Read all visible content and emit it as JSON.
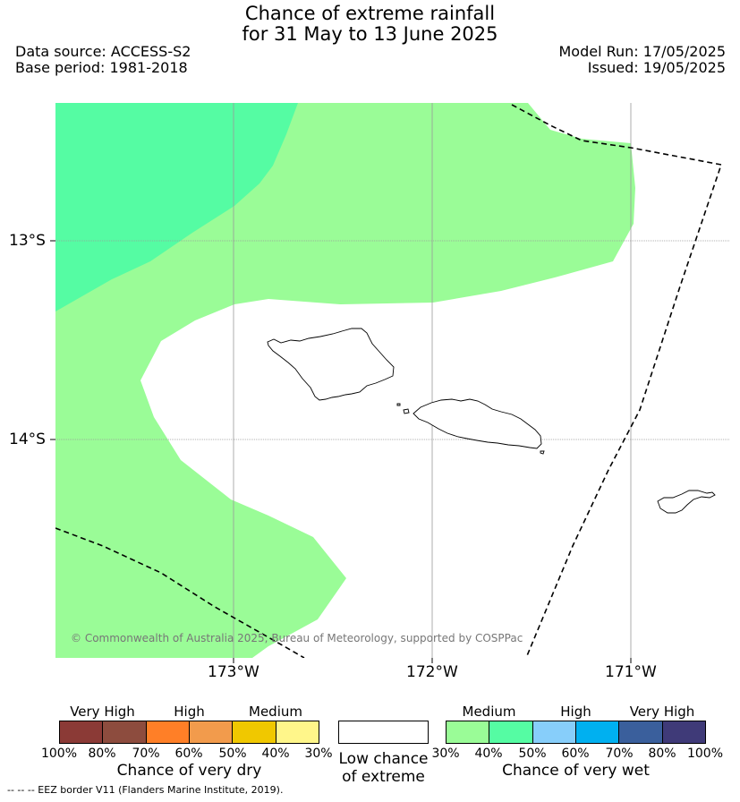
{
  "header": {
    "title_line1": "Chance of extreme rainfall",
    "title_line2": "for 31 May to 13 June 2025",
    "data_source": "Data source: ACCESS-S2",
    "base_period": "Base period: 1981-2018",
    "model_run": "Model Run: 17/05/2025",
    "issued": "Issued: 19/05/2025"
  },
  "map": {
    "lat_labels": [
      "13°S",
      "14°S"
    ],
    "lon_labels": [
      "173°W",
      "172°W",
      "171°W"
    ],
    "copyright": "© Commonwealth of Australia 2025, Bureau of Meteorology, supported by COSPPac",
    "colors": {
      "wet_medium": "#9afc97",
      "wet_40_50": "#55fca3",
      "land_outline": "#000000",
      "eez_border": "#000000",
      "grid": "#999999"
    }
  },
  "legend": {
    "dry": {
      "categories": [
        "Very High",
        "High",
        "Medium"
      ],
      "colors": [
        "#8b3a36",
        "#8d4c3e",
        "#ff7f27",
        "#f29b4c",
        "#f0c800",
        "#fff68a"
      ],
      "ticks": [
        "100%",
        "80%",
        "70%",
        "60%",
        "50%",
        "40%",
        "30%"
      ],
      "title": "Chance of very dry"
    },
    "low": {
      "title_line1": "Low chance",
      "title_line2": "of extreme",
      "color": "#ffffff"
    },
    "wet": {
      "categories": [
        "Medium",
        "High",
        "Very High"
      ],
      "colors": [
        "#9afc97",
        "#55fca3",
        "#87cefa",
        "#00b0f0",
        "#3a5f9c",
        "#3f3a78"
      ],
      "ticks": [
        "30%",
        "40%",
        "50%",
        "60%",
        "70%",
        "80%",
        "100%"
      ],
      "title": "Chance of very wet"
    }
  },
  "footnote": "-- -- -- EEZ border V11 (Flanders Marine Institute, 2019)."
}
